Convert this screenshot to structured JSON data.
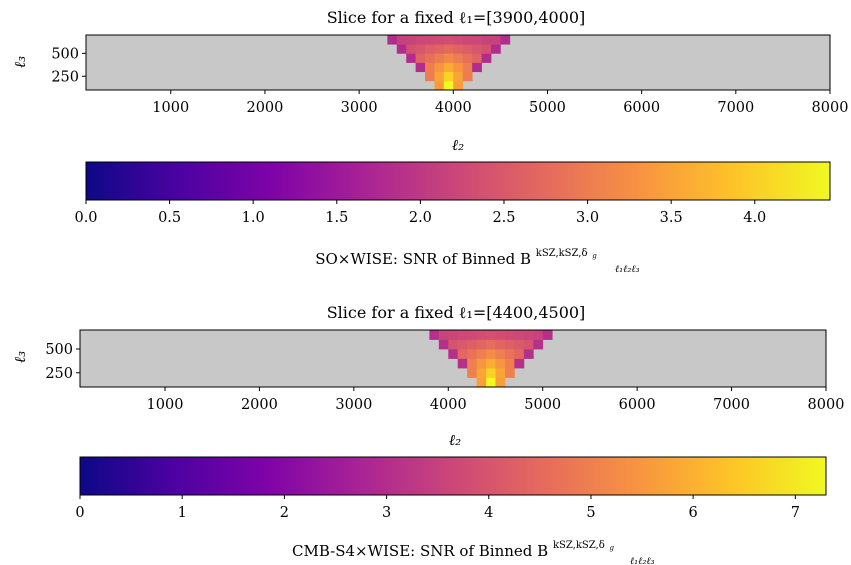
{
  "chart_data": [
    {
      "type": "heatmap",
      "title": "Slice for a fixed ℓ₁=[3900,4000]",
      "xlabel": "ℓ₂",
      "ylabel": "ℓ₃",
      "x_ticks": [
        "1000",
        "2000",
        "3000",
        "4000",
        "5000",
        "6000",
        "7000",
        "8000"
      ],
      "y_ticks": [
        "250",
        "500"
      ],
      "xlim": [
        100,
        8000
      ],
      "ylim": [
        100,
        700
      ],
      "fixed_l1_bin": [
        3900,
        4000
      ],
      "bin_width": 100,
      "background_color": "#c8c8c8",
      "colormap": "plasma",
      "colorbar": {
        "range": [
          0,
          4.45
        ],
        "ticks": [
          "0.0",
          "0.5",
          "1.0",
          "1.5",
          "2.0",
          "2.5",
          "3.0",
          "3.5",
          "4.0"
        ],
        "label": "SO×WISE: SNR of Binned B",
        "label_symbol": "B",
        "label_superscript": "kSZ,kSZ,δ",
        "label_superscript_sub": "g",
        "label_subscript": "ℓ₁ℓ₂ℓ₃"
      },
      "peak_snr": 4.45,
      "edge_snr": 1.9
    },
    {
      "type": "heatmap",
      "title": "Slice for a fixed ℓ₁=[4400,4500]",
      "xlabel": "ℓ₂",
      "ylabel": "ℓ₃",
      "x_ticks": [
        "1000",
        "2000",
        "3000",
        "4000",
        "5000",
        "6000",
        "7000",
        "8000"
      ],
      "y_ticks": [
        "250",
        "500"
      ],
      "xlim": [
        100,
        8000
      ],
      "ylim": [
        100,
        700
      ],
      "fixed_l1_bin": [
        4400,
        4500
      ],
      "bin_width": 100,
      "background_color": "#c8c8c8",
      "colormap": "plasma",
      "colorbar": {
        "range": [
          0,
          7.3
        ],
        "ticks": [
          "0",
          "1",
          "2",
          "3",
          "4",
          "5",
          "6",
          "7"
        ],
        "label": "CMB-S4×WISE: SNR of Binned B",
        "label_symbol": "B",
        "label_superscript": "kSZ,kSZ,δ",
        "label_superscript_sub": "g",
        "label_subscript": "ℓ₁ℓ₂ℓ₃"
      },
      "peak_snr": 7.3,
      "edge_snr": 3.2
    }
  ]
}
